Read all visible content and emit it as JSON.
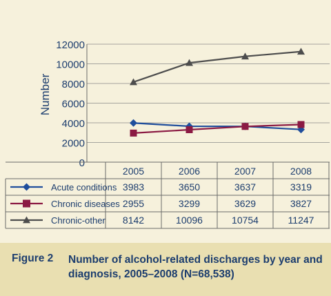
{
  "chart_data": {
    "type": "line",
    "ylabel": "Number",
    "ylim": [
      0,
      12000
    ],
    "yticks": [
      "0",
      "2000",
      "4000",
      "6000",
      "8000",
      "10000",
      "12000"
    ],
    "categories": [
      "2005",
      "2006",
      "2007",
      "2008"
    ],
    "grid": true,
    "series": [
      {
        "name": "Acute conditions",
        "values": [
          3983,
          3650,
          3637,
          3319
        ],
        "color": "#1f4e9c",
        "marker": "diamond"
      },
      {
        "name": "Chronic diseases",
        "values": [
          2955,
          3299,
          3629,
          3827
        ],
        "color": "#8b1a43",
        "marker": "square"
      },
      {
        "name": "Chronic-other",
        "values": [
          8142,
          10096,
          10754,
          11247
        ],
        "color": "#4d4d4d",
        "marker": "triangle"
      }
    ],
    "table": {
      "rows": [
        [
          "3983",
          "3650",
          "3637",
          "3319"
        ],
        [
          "2955",
          "3299",
          "3629",
          "3827"
        ],
        [
          "8142",
          "10096",
          "10754",
          "11247"
        ]
      ]
    }
  },
  "caption": {
    "figure_label": "Figure 2",
    "text": "Number of alcohol-related discharges by year and diagnosis, 2005–2008 (N=68,538)"
  }
}
